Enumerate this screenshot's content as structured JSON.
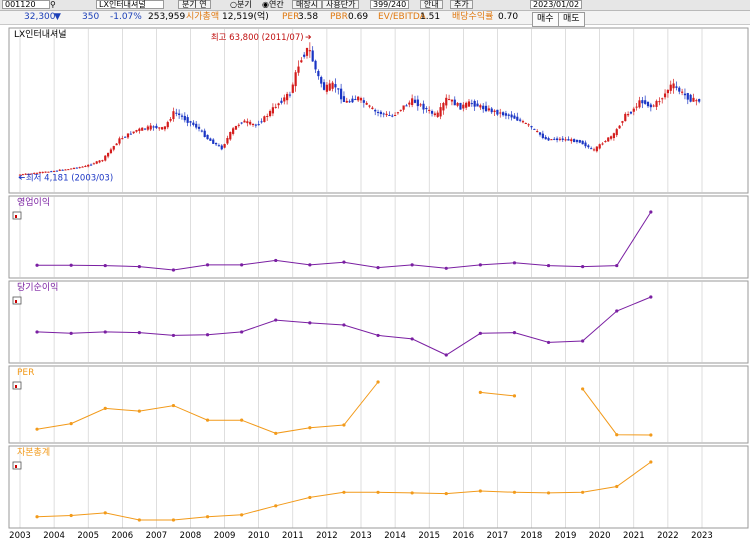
{
  "toolbar": {
    "code": "001120",
    "name": "LX인터내셔널",
    "period_button": "분기 연",
    "radio_quarter": "분기",
    "radio_year": "연간",
    "display_label": "매장시",
    "user_label": "사용단가",
    "count": "399/240",
    "help": "안내",
    "add": "추가",
    "date": "2023/01/02"
  },
  "info": {
    "price": "32,300",
    "change": "350",
    "change_pct": "-1.07%",
    "volume": "253,959",
    "mcap_label": "시가총액",
    "mcap_value": "12,519(억)",
    "per_label": "PER",
    "per_value": "3.58",
    "pbr_label": "PBR",
    "pbr_value": "0.69",
    "ev_label": "EV/EBITDA",
    "ev_value": "1.51",
    "div_label": "배당수익률",
    "div_value": "0.70",
    "buy": "매수",
    "sell": "매도"
  },
  "colors": {
    "up": "#d41c1c",
    "down": "#1a35c4",
    "purple": "#7a1fa2",
    "orange": "#f29a1a",
    "grid": "#c8c8c8"
  },
  "chart_data": [
    {
      "type": "candlestick",
      "title": "LX인터내셔널",
      "annotations": [
        {
          "label": "최고 63,800 (2011/07)",
          "x": 2011.55,
          "y": 63800
        },
        {
          "label": "최저 4,181 (2003/03)",
          "x": 2003.2,
          "y": 4181
        }
      ],
      "ylim": [
        0,
        66000
      ],
      "x": [
        2003.0,
        2003.5,
        2004.0,
        2004.5,
        2005.0,
        2005.5,
        2006.0,
        2006.5,
        2007.0,
        2007.3,
        2007.6,
        2008.0,
        2008.3,
        2008.6,
        2009.0,
        2009.3,
        2009.6,
        2010.0,
        2010.3,
        2010.6,
        2011.0,
        2011.3,
        2011.55,
        2011.8,
        2012.0,
        2012.3,
        2012.6,
        2013.0,
        2013.5,
        2014.0,
        2014.3,
        2014.6,
        2015.0,
        2015.3,
        2015.6,
        2016.0,
        2016.3,
        2016.6,
        2017.0,
        2017.5,
        2018.0,
        2018.5,
        2019.0,
        2019.5,
        2019.9,
        2020.2,
        2020.5,
        2020.8,
        2021.0,
        2021.3,
        2021.6,
        2021.9,
        2022.2,
        2022.5,
        2022.8
      ],
      "close": [
        4400,
        5200,
        6000,
        7000,
        8200,
        11000,
        20000,
        24000,
        25500,
        24500,
        32000,
        28000,
        25000,
        20000,
        16000,
        24000,
        28000,
        26000,
        30000,
        35000,
        40000,
        55000,
        60000,
        48000,
        42000,
        44000,
        36000,
        38000,
        32000,
        30000,
        34000,
        37000,
        33000,
        30000,
        38000,
        34000,
        36000,
        34000,
        32000,
        30000,
        26000,
        20000,
        20000,
        19000,
        15000,
        19000,
        22000,
        30000,
        32000,
        37000,
        34000,
        38000,
        44000,
        40000,
        37000
      ]
    },
    {
      "type": "line",
      "title": "영업이익",
      "x": [
        2003,
        2004,
        2005,
        2006,
        2007,
        2008,
        2009,
        2010,
        2011,
        2012,
        2013,
        2014,
        2015,
        2016,
        2017,
        2018,
        2019,
        2020,
        2021
      ],
      "values": [
        44,
        44,
        43,
        40,
        30,
        45,
        45,
        58,
        45,
        53,
        37,
        45,
        35,
        45,
        51,
        43,
        40,
        43,
        200
      ]
    },
    {
      "type": "line",
      "title": "당기순이익",
      "x": [
        2003,
        2004,
        2005,
        2006,
        2007,
        2008,
        2009,
        2010,
        2011,
        2012,
        2013,
        2014,
        2015,
        2016,
        2017,
        2018,
        2019,
        2020,
        2021
      ],
      "values": [
        45,
        43,
        45,
        44,
        40,
        41,
        45,
        62,
        58,
        55,
        40,
        35,
        12,
        43,
        44,
        30,
        32,
        75,
        95
      ]
    },
    {
      "type": "line",
      "title": "PER",
      "x": [
        2003,
        2004,
        2005,
        2006,
        2007,
        2008,
        2009,
        2010,
        2011,
        2012,
        2013,
        2016,
        2017,
        2019,
        2020,
        2021
      ],
      "values": [
        12,
        20,
        42,
        38,
        46,
        25,
        25,
        6,
        14,
        18,
        80,
        65,
        60,
        70,
        4,
        3.6
      ],
      "segments": [
        [
          0,
          10
        ],
        [
          11,
          12
        ],
        [
          13,
          15
        ]
      ]
    },
    {
      "type": "line",
      "title": "자본총계",
      "x": [
        2003,
        2004,
        2005,
        2006,
        2007,
        2008,
        2009,
        2010,
        2011,
        2012,
        2013,
        2014,
        2015,
        2016,
        2017,
        2018,
        2019,
        2020,
        2021
      ],
      "values": [
        10,
        12,
        16,
        5,
        5,
        10,
        13,
        27,
        40,
        48,
        48,
        47,
        46,
        50,
        48,
        47,
        48,
        57,
        95
      ]
    }
  ],
  "xaxis_ticks": [
    "2003",
    "2004",
    "2005",
    "2006",
    "2007",
    "2008",
    "2009",
    "2010",
    "2011",
    "2012",
    "2013",
    "2014",
    "2015",
    "2016",
    "2017",
    "2018",
    "2019",
    "2020",
    "2021",
    "2022",
    "2023"
  ]
}
